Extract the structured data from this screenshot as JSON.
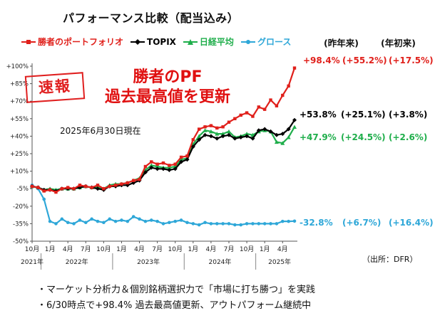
{
  "title": "パフォーマンス比較（配当込み）",
  "column_headers": {
    "ytd_prev": "(昨年来)",
    "ytd": "(年初来)"
  },
  "stamp": "速報",
  "headline": [
    "勝者のPF",
    "過去最高値を更新"
  ],
  "as_of": "2025年6月30日現在",
  "source": "（出所：DFR）",
  "bullets": [
    "・マーケット分析力＆個別銘柄選択力で「市場に打ち勝つ」を実践",
    "・6/30時点で+98.4% 過去最高値更新、アウトパフォーム継続中"
  ],
  "chart_data": {
    "type": "line",
    "title": "パフォーマンス比較（配当込み）",
    "xlabel": "",
    "ylabel": "",
    "ylim": [
      -50,
      100
    ],
    "yticks": [
      -50,
      -35,
      -20,
      -5,
      10,
      25,
      40,
      55,
      70,
      85,
      100
    ],
    "ytick_labels": [
      "-50%",
      "-35%",
      "-20%",
      "-5%",
      "+10%",
      "+25%",
      "+40%",
      "+55%",
      "+70%",
      "+85%",
      "+100%"
    ],
    "x": [
      "2021-10",
      "2021-11",
      "2021-12",
      "2022-01",
      "2022-02",
      "2022-03",
      "2022-04",
      "2022-05",
      "2022-06",
      "2022-07",
      "2022-08",
      "2022-09",
      "2022-10",
      "2022-11",
      "2022-12",
      "2023-01",
      "2023-02",
      "2023-03",
      "2023-04",
      "2023-05",
      "2023-06",
      "2023-07",
      "2023-08",
      "2023-09",
      "2023-10",
      "2023-11",
      "2023-12",
      "2024-01",
      "2024-02",
      "2024-03",
      "2024-04",
      "2024-05",
      "2024-06",
      "2024-07",
      "2024-08",
      "2024-09",
      "2024-10",
      "2024-11",
      "2024-12",
      "2025-01",
      "2025-02",
      "2025-03",
      "2025-04",
      "2025-05",
      "2025-06"
    ],
    "x_tick_labels": [
      "10月",
      "1月",
      "4月",
      "7月",
      "10月",
      "1月",
      "4月",
      "7月",
      "10月",
      "1月",
      "4月",
      "7月",
      "10月",
      "1月",
      "4月"
    ],
    "x_tick_index": [
      0,
      3,
      6,
      9,
      12,
      15,
      18,
      21,
      24,
      27,
      30,
      33,
      36,
      39,
      42
    ],
    "year_labels": [
      {
        "text": "2021年",
        "index": 0
      },
      {
        "text": "2022年",
        "index": 7.5
      },
      {
        "text": "2023年",
        "index": 19.5
      },
      {
        "text": "2024年",
        "index": 31.5
      },
      {
        "text": "2025年",
        "index": 41.5
      }
    ],
    "series": [
      {
        "name": "勝者のポートフォリオ",
        "color": "#e0201b",
        "marker": "square",
        "values": [
          -3,
          -4,
          -7,
          -6,
          -8,
          -5,
          -4,
          -5,
          -2,
          -3,
          -4,
          -2,
          -5,
          -3,
          -2,
          -1,
          0,
          2,
          3,
          14,
          18,
          16,
          17,
          15,
          16,
          22,
          23,
          37,
          46,
          48,
          49,
          47,
          48,
          52,
          55,
          58,
          60,
          57,
          65,
          63,
          71,
          66,
          75,
          83,
          98.4
        ],
        "annotation": {
          "value": "+98.4%",
          "since_prev": "(+55.2%)",
          "ytd": "(+17.5%)"
        }
      },
      {
        "name": "TOPIX",
        "color": "#000000",
        "marker": "diamond",
        "values": [
          -3,
          -4,
          -6,
          -6,
          -7,
          -5,
          -5,
          -5,
          -4,
          -3,
          -4,
          -5,
          -6,
          -3,
          -3,
          -2,
          -2,
          0,
          2,
          9,
          13,
          12,
          12,
          11,
          12,
          18,
          20,
          31,
          37,
          41,
          40,
          38,
          40,
          41,
          38,
          39,
          40,
          38,
          45,
          46,
          44,
          41,
          42,
          46,
          53.8
        ],
        "annotation": {
          "value": "+53.8%",
          "since_prev": "(+25.1%)",
          "ytd": "(+3.8%)"
        }
      },
      {
        "name": "日経平均",
        "color": "#1fae4b",
        "marker": "triangle",
        "values": [
          -3,
          -4,
          -6,
          -5,
          -6,
          -5,
          -5,
          -5,
          -4,
          -3,
          -4,
          -4,
          -5,
          -2,
          -1,
          -1,
          0,
          2,
          4,
          11,
          15,
          14,
          13,
          13,
          14,
          20,
          21,
          33,
          40,
          45,
          44,
          42,
          42,
          44,
          39,
          40,
          42,
          41,
          44,
          45,
          44,
          35,
          34,
          39,
          47.9
        ],
        "annotation": {
          "value": "+47.9%",
          "since_prev": "(+24.5%)",
          "ytd": "(+2.6%)"
        }
      },
      {
        "name": "グロース",
        "color": "#2ea7d8",
        "marker": "circle",
        "values": [
          -2,
          -5,
          -14,
          -33,
          -35,
          -31,
          -34,
          -35,
          -32,
          -34,
          -31,
          -33,
          -34,
          -31,
          -33,
          -32,
          -33,
          -29,
          -31,
          -33,
          -32,
          -33,
          -35,
          -34,
          -33,
          -32,
          -34,
          -35,
          -36,
          -34,
          -35,
          -35,
          -35,
          -35,
          -36,
          -36,
          -35,
          -35,
          -35,
          -35,
          -35,
          -35,
          -33,
          -33,
          -32.8
        ],
        "annotation": {
          "value": "-32.8%",
          "since_prev": "(+6.7%)",
          "ytd": "(+16.4%)"
        }
      }
    ],
    "grid": false,
    "legend_position": "top"
  }
}
